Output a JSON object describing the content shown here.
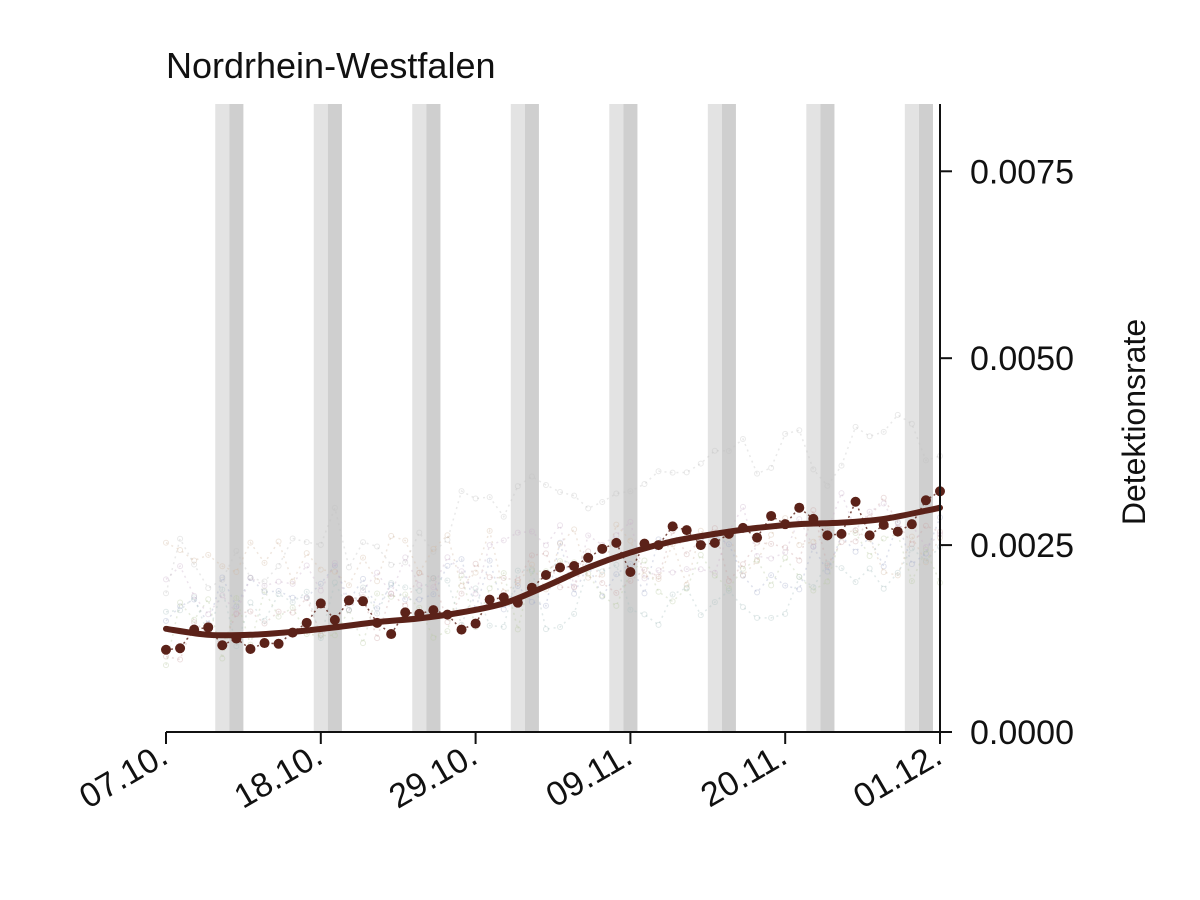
{
  "chart_data": {
    "type": "line",
    "title": "Nordrhein-Westfalen",
    "xlabel": "",
    "ylabel": "Detektionsrate",
    "x_ticks": [
      "07.10.",
      "18.10.",
      "29.10.",
      "09.11.",
      "20.11.",
      "01.12."
    ],
    "y_ticks": [
      "0.0000",
      "0.0025",
      "0.0050",
      "0.0075"
    ],
    "xlim": [
      "2020-10-07",
      "2020-12-01"
    ],
    "ylim": [
      0,
      0.0084
    ],
    "y_axis_side": "right",
    "grid": false,
    "legend": "none",
    "weekend_shading": [
      [
        "2020-10-10",
        "2020-10-12"
      ],
      [
        "2020-10-17",
        "2020-10-19"
      ],
      [
        "2020-10-24",
        "2020-10-26"
      ],
      [
        "2020-10-31",
        "2020-11-02"
      ],
      [
        "2020-11-07",
        "2020-11-09"
      ],
      [
        "2020-11-14",
        "2020-11-16"
      ],
      [
        "2020-11-21",
        "2020-11-23"
      ],
      [
        "2020-11-28",
        "2020-11-30"
      ]
    ],
    "series": [
      {
        "style": "points",
        "color": "#5b2219",
        "dates": [
          "2020-10-07",
          "2020-10-08",
          "2020-10-09",
          "2020-10-10",
          "2020-10-11",
          "2020-10-12",
          "2020-10-13",
          "2020-10-14",
          "2020-10-15",
          "2020-10-16",
          "2020-10-17",
          "2020-10-18",
          "2020-10-19",
          "2020-10-20",
          "2020-10-21",
          "2020-10-22",
          "2020-10-23",
          "2020-10-24",
          "2020-10-25",
          "2020-10-26",
          "2020-10-27",
          "2020-10-28",
          "2020-10-29",
          "2020-10-30",
          "2020-10-31",
          "2020-11-01",
          "2020-11-02",
          "2020-11-03",
          "2020-11-04",
          "2020-11-05",
          "2020-11-06",
          "2020-11-07",
          "2020-11-08",
          "2020-11-09",
          "2020-11-10",
          "2020-11-11",
          "2020-11-12",
          "2020-11-13",
          "2020-11-14",
          "2020-11-15",
          "2020-11-16",
          "2020-11-17",
          "2020-11-18",
          "2020-11-19",
          "2020-11-20",
          "2020-11-21",
          "2020-11-22",
          "2020-11-23",
          "2020-11-24",
          "2020-11-25",
          "2020-11-26",
          "2020-11-27",
          "2020-11-28",
          "2020-11-29",
          "2020-11-30",
          "2020-12-01"
        ],
        "values": [
          0.0011,
          0.00112,
          0.00137,
          0.0014,
          0.00116,
          0.00125,
          0.00111,
          0.00119,
          0.00118,
          0.00133,
          0.00146,
          0.00172,
          0.0015,
          0.00176,
          0.00175,
          0.00146,
          0.00131,
          0.0016,
          0.00158,
          0.00163,
          0.00157,
          0.00137,
          0.00145,
          0.00177,
          0.0018,
          0.00173,
          0.00193,
          0.0021,
          0.0022,
          0.00222,
          0.00233,
          0.00245,
          0.00253,
          0.00214,
          0.00252,
          0.0025,
          0.00275,
          0.0027,
          0.0025,
          0.00253,
          0.00265,
          0.00273,
          0.0026,
          0.00289,
          0.00278,
          0.003,
          0.00285,
          0.00263,
          0.00265,
          0.00308,
          0.00263,
          0.00277,
          0.00268,
          0.00278,
          0.0031,
          0.00322
        ]
      },
      {
        "style": "trend",
        "color": "#5b2219",
        "dates": [
          "2020-10-07",
          "2020-10-10",
          "2020-10-13",
          "2020-10-16",
          "2020-10-19",
          "2020-10-22",
          "2020-10-25",
          "2020-10-28",
          "2020-10-31",
          "2020-11-03",
          "2020-11-06",
          "2020-11-09",
          "2020-11-12",
          "2020-11-15",
          "2020-11-18",
          "2020-11-21",
          "2020-11-24",
          "2020-11-27",
          "2020-11-30",
          "2020-12-01"
        ],
        "values": [
          0.00138,
          0.0013,
          0.0013,
          0.00134,
          0.0014,
          0.00147,
          0.00152,
          0.0016,
          0.00172,
          0.00195,
          0.0022,
          0.0024,
          0.00255,
          0.00265,
          0.00273,
          0.00278,
          0.0028,
          0.00285,
          0.00296,
          0.003
        ]
      }
    ],
    "background_series_note_color": "#b0a0a8"
  }
}
